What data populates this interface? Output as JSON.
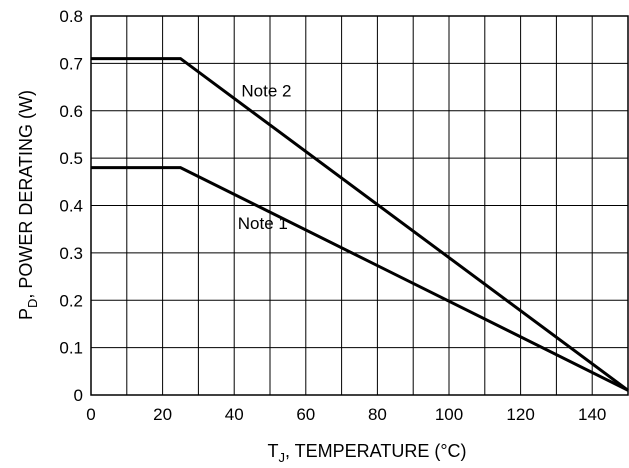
{
  "chart_data": {
    "type": "line",
    "title": "",
    "xlabel": {
      "main": "T",
      "sub": "J",
      "rest": ", TEMPERATURE (°C)"
    },
    "ylabel": {
      "main": "P",
      "sub": "D",
      "rest": ", POWER DERATING (W)"
    },
    "xlim": [
      0,
      150
    ],
    "ylim": [
      0,
      0.8
    ],
    "grid": true,
    "x_ticks": [
      {
        "value": 0,
        "label": "0"
      },
      {
        "value": 20,
        "label": "20"
      },
      {
        "value": 40,
        "label": "40"
      },
      {
        "value": 60,
        "label": "60"
      },
      {
        "value": 80,
        "label": "80"
      },
      {
        "value": 100,
        "label": "100"
      },
      {
        "value": 120,
        "label": "120"
      },
      {
        "value": 140,
        "label": "140"
      }
    ],
    "x_minor_step": 10,
    "y_ticks": [
      {
        "value": 0,
        "label": "0"
      },
      {
        "value": 0.1,
        "label": "0.1"
      },
      {
        "value": 0.2,
        "label": "0.2"
      },
      {
        "value": 0.3,
        "label": "0.3"
      },
      {
        "value": 0.4,
        "label": "0.4"
      },
      {
        "value": 0.5,
        "label": "0.5"
      },
      {
        "value": 0.6,
        "label": "0.6"
      },
      {
        "value": 0.7,
        "label": "0.7"
      },
      {
        "value": 0.8,
        "label": "0.8"
      }
    ],
    "series": [
      {
        "name": "Note 2",
        "points": [
          [
            0,
            0.71
          ],
          [
            25,
            0.71
          ],
          [
            150,
            0.01
          ]
        ]
      },
      {
        "name": "Note 1",
        "points": [
          [
            0,
            0.48
          ],
          [
            25,
            0.48
          ],
          [
            150,
            0.01
          ]
        ]
      }
    ],
    "annotations": [
      {
        "text": "Note 2",
        "x": 42,
        "y": 0.63
      },
      {
        "text": "Note 1",
        "x": 41,
        "y": 0.35
      }
    ]
  }
}
